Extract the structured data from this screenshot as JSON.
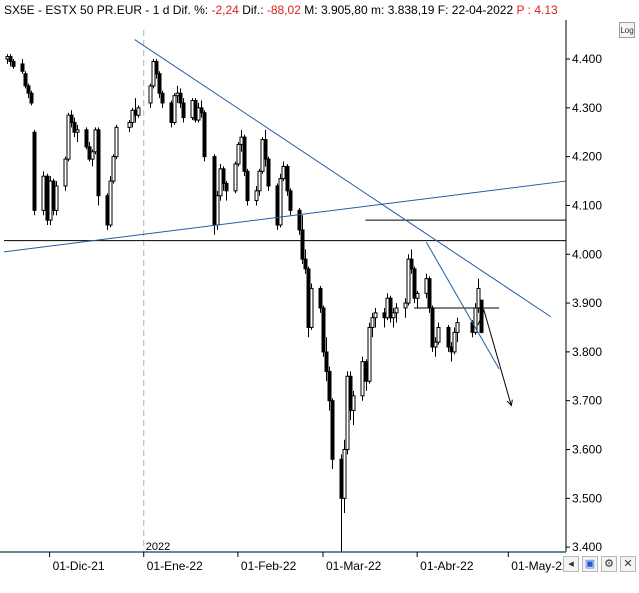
{
  "header": {
    "symbol": "SX5E",
    "name": "ESTX 50 PR.EUR",
    "period": "1 d",
    "dif_pct_label": "Dif. %:",
    "dif_pct": "-2,24",
    "dif_label": "Dif.:",
    "dif": "-88,02",
    "max_label": "M:",
    "max": "3.905,80",
    "min_label": "m:",
    "min": "3.838,19",
    "date_label": "F:",
    "date": "22-04-2022",
    "p_label": "P :",
    "p": "4.13"
  },
  "toolbar": {
    "log_label": "Log"
  },
  "colors": {
    "candle": "#000000",
    "trendline": "#1f5fa6",
    "support": "#000000",
    "bottom_line": "#3a9aa6",
    "negative": "#e02020"
  },
  "chart_data": {
    "type": "candlestick",
    "ylim": [
      3390,
      4480
    ],
    "yticks": [
      "4.400",
      "4.300",
      "4.200",
      "4.100",
      "4.000",
      "3.900",
      "3.800",
      "3.700",
      "3.600",
      "3.500",
      "3.400"
    ],
    "ytick_values": [
      4400,
      4300,
      4200,
      4100,
      4000,
      3900,
      3800,
      3700,
      3600,
      3500,
      3400
    ],
    "xticks": [
      "01-Dic-21",
      "01-Ene-22",
      "01-Feb-22",
      "01-Mar-22",
      "01-Abr-22",
      "01-May-22"
    ],
    "xticks_date": [
      "2021-12-01",
      "2022-01-01",
      "2022-02-01",
      "2022-03-01",
      "2022-04-01",
      "2022-05-01"
    ],
    "year_label": "2022",
    "year_date": "2022-01-01",
    "x_range": [
      "2021-11-16",
      "2022-05-20"
    ],
    "horizontal_lines": [
      {
        "level": 4028,
        "from": "2021-11-16",
        "to": "2022-05-20",
        "kind": "support"
      },
      {
        "level": 4070,
        "from": "2022-03-15",
        "to": "2022-05-20",
        "kind": "support"
      },
      {
        "level": 3890,
        "from": "2022-03-31",
        "to": "2022-04-28",
        "kind": "support"
      },
      {
        "level": 3391,
        "from": "2021-11-16",
        "to": "2022-05-20",
        "kind": "bottom"
      }
    ],
    "trendlines": [
      {
        "from": [
          "2021-11-16",
          4005
        ],
        "to": [
          "2022-05-20",
          4150
        ]
      },
      {
        "from": [
          "2021-12-29",
          4440
        ],
        "to": [
          "2022-05-15",
          3872
        ]
      },
      {
        "from": [
          "2022-04-04",
          4025
        ],
        "to": [
          "2022-04-28",
          3765
        ]
      }
    ],
    "projection_arrows": [
      {
        "points": [
          [
            "2022-04-21",
            3855
          ],
          [
            "2022-04-23",
            3885
          ],
          [
            "2022-05-02",
            3690
          ]
        ]
      }
    ],
    "candles": [
      [
        "2021-11-17",
        4400,
        4410,
        4390,
        4405
      ],
      [
        "2021-11-18",
        4405,
        4410,
        4385,
        4395
      ],
      [
        "2021-11-19",
        4395,
        4400,
        4380,
        4385
      ],
      [
        "2021-11-22",
        4390,
        4400,
        4370,
        4375
      ],
      [
        "2021-11-23",
        4370,
        4375,
        4340,
        4345
      ],
      [
        "2021-11-24",
        4345,
        4350,
        4320,
        4330
      ],
      [
        "2021-11-25",
        4330,
        4335,
        4305,
        4310
      ],
      [
        "2021-11-26",
        4250,
        4255,
        4080,
        4090
      ],
      [
        "2021-11-29",
        4090,
        4170,
        4080,
        4160
      ],
      [
        "2021-11-30",
        4160,
        4165,
        4060,
        4070
      ],
      [
        "2021-12-01",
        4070,
        4160,
        4060,
        4150
      ],
      [
        "2021-12-02",
        4150,
        4155,
        4080,
        4090
      ],
      [
        "2021-12-03",
        4090,
        4150,
        4080,
        4140
      ],
      [
        "2021-12-06",
        4140,
        4200,
        4130,
        4195
      ],
      [
        "2021-12-07",
        4195,
        4290,
        4190,
        4285
      ],
      [
        "2021-12-08",
        4285,
        4295,
        4260,
        4270
      ],
      [
        "2021-12-09",
        4270,
        4280,
        4240,
        4250
      ],
      [
        "2021-12-10",
        4250,
        4265,
        4230,
        4255
      ],
      [
        "2021-12-13",
        4255,
        4260,
        4215,
        4220
      ],
      [
        "2021-12-14",
        4220,
        4230,
        4190,
        4195
      ],
      [
        "2021-12-15",
        4195,
        4215,
        4180,
        4210
      ],
      [
        "2021-12-16",
        4210,
        4260,
        4205,
        4255
      ],
      [
        "2021-12-17",
        4255,
        4260,
        4100,
        4120
      ],
      [
        "2021-12-20",
        4120,
        4125,
        4050,
        4060
      ],
      [
        "2021-12-21",
        4060,
        4160,
        4055,
        4150
      ],
      [
        "2021-12-22",
        4150,
        4205,
        4145,
        4200
      ],
      [
        "2021-12-23",
        4200,
        4265,
        4195,
        4260
      ],
      [
        "2021-12-27",
        4260,
        4275,
        4250,
        4270
      ],
      [
        "2021-12-28",
        4270,
        4300,
        4260,
        4295
      ],
      [
        "2021-12-29",
        4295,
        4320,
        4270,
        4285
      ],
      [
        "2021-12-30",
        4285,
        4305,
        4280,
        4300
      ],
      [
        "2022-01-03",
        4310,
        4350,
        4300,
        4345
      ],
      [
        "2022-01-04",
        4345,
        4400,
        4340,
        4395
      ],
      [
        "2022-01-05",
        4395,
        4400,
        4360,
        4370
      ],
      [
        "2022-01-06",
        4370,
        4375,
        4320,
        4330
      ],
      [
        "2022-01-07",
        4330,
        4335,
        4300,
        4310
      ],
      [
        "2022-01-10",
        4310,
        4315,
        4260,
        4270
      ],
      [
        "2022-01-11",
        4270,
        4330,
        4265,
        4325
      ],
      [
        "2022-01-12",
        4325,
        4345,
        4310,
        4330
      ],
      [
        "2022-01-13",
        4330,
        4340,
        4300,
        4310
      ],
      [
        "2022-01-14",
        4310,
        4320,
        4270,
        4280
      ],
      [
        "2022-01-17",
        4280,
        4320,
        4275,
        4315
      ],
      [
        "2022-01-18",
        4315,
        4320,
        4270,
        4275
      ],
      [
        "2022-01-19",
        4275,
        4310,
        4270,
        4300
      ],
      [
        "2022-01-20",
        4300,
        4315,
        4280,
        4290
      ],
      [
        "2022-01-21",
        4290,
        4295,
        4190,
        4200
      ],
      [
        "2022-01-24",
        4200,
        4205,
        4040,
        4060
      ],
      [
        "2022-01-25",
        4060,
        4130,
        4050,
        4120
      ],
      [
        "2022-01-26",
        4120,
        4185,
        4110,
        4175
      ],
      [
        "2022-01-27",
        4175,
        4180,
        4130,
        4145
      ],
      [
        "2022-01-28",
        4145,
        4150,
        4110,
        4130
      ],
      [
        "2022-01-31",
        4130,
        4190,
        4125,
        4185
      ],
      [
        "2022-02-01",
        4185,
        4230,
        4180,
        4225
      ],
      [
        "2022-02-02",
        4225,
        4255,
        4210,
        4240
      ],
      [
        "2022-02-03",
        4240,
        4245,
        4160,
        4170
      ],
      [
        "2022-02-04",
        4170,
        4175,
        4100,
        4110
      ],
      [
        "2022-02-07",
        4110,
        4140,
        4100,
        4130
      ],
      [
        "2022-02-08",
        4130,
        4175,
        4120,
        4170
      ],
      [
        "2022-02-09",
        4170,
        4240,
        4165,
        4235
      ],
      [
        "2022-02-10",
        4235,
        4255,
        4180,
        4195
      ],
      [
        "2022-02-11",
        4195,
        4200,
        4130,
        4140
      ],
      [
        "2022-02-14",
        4140,
        4145,
        4050,
        4060
      ],
      [
        "2022-02-15",
        4060,
        4165,
        4055,
        4155
      ],
      [
        "2022-02-16",
        4155,
        4190,
        4150,
        4180
      ],
      [
        "2022-02-17",
        4180,
        4185,
        4120,
        4130
      ],
      [
        "2022-02-18",
        4130,
        4135,
        4080,
        4090
      ],
      [
        "2022-02-21",
        4090,
        4095,
        4040,
        4050
      ],
      [
        "2022-02-22",
        4050,
        4080,
        3980,
        3990
      ],
      [
        "2022-02-23",
        3990,
        4010,
        3960,
        3970
      ],
      [
        "2022-02-24",
        3970,
        3975,
        3830,
        3850
      ],
      [
        "2022-02-25",
        3850,
        3940,
        3845,
        3930
      ],
      [
        "2022-02-28",
        3930,
        3935,
        3880,
        3890
      ],
      [
        "2022-03-01",
        3890,
        3895,
        3790,
        3800
      ],
      [
        "2022-03-02",
        3800,
        3830,
        3740,
        3760
      ],
      [
        "2022-03-03",
        3760,
        3770,
        3680,
        3700
      ],
      [
        "2022-03-04",
        3700,
        3705,
        3560,
        3580
      ],
      [
        "2022-03-07",
        3580,
        3590,
        3390,
        3500
      ],
      [
        "2022-03-08",
        3500,
        3620,
        3470,
        3600
      ],
      [
        "2022-03-09",
        3600,
        3760,
        3590,
        3750
      ],
      [
        "2022-03-10",
        3750,
        3760,
        3660,
        3680
      ],
      [
        "2022-03-11",
        3680,
        3720,
        3650,
        3710
      ],
      [
        "2022-03-14",
        3710,
        3790,
        3700,
        3780
      ],
      [
        "2022-03-15",
        3780,
        3785,
        3720,
        3740
      ],
      [
        "2022-03-16",
        3740,
        3860,
        3735,
        3850
      ],
      [
        "2022-03-17",
        3850,
        3880,
        3830,
        3870
      ],
      [
        "2022-03-18",
        3870,
        3890,
        3850,
        3880
      ],
      [
        "2022-03-21",
        3880,
        3890,
        3850,
        3870
      ],
      [
        "2022-03-22",
        3870,
        3920,
        3865,
        3910
      ],
      [
        "2022-03-23",
        3910,
        3915,
        3860,
        3870
      ],
      [
        "2022-03-24",
        3870,
        3890,
        3850,
        3880
      ],
      [
        "2022-03-25",
        3880,
        3900,
        3860,
        3890
      ],
      [
        "2022-03-28",
        3890,
        3910,
        3870,
        3900
      ],
      [
        "2022-03-29",
        3900,
        4000,
        3895,
        3990
      ],
      [
        "2022-03-30",
        3990,
        4010,
        3960,
        3970
      ],
      [
        "2022-03-31",
        3970,
        3975,
        3900,
        3910
      ],
      [
        "2022-04-01",
        3910,
        3925,
        3890,
        3920
      ],
      [
        "2022-04-04",
        3920,
        3960,
        3910,
        3950
      ],
      [
        "2022-04-05",
        3950,
        3955,
        3880,
        3890
      ],
      [
        "2022-04-06",
        3890,
        3895,
        3800,
        3810
      ],
      [
        "2022-04-07",
        3810,
        3830,
        3790,
        3820
      ],
      [
        "2022-04-08",
        3820,
        3860,
        3815,
        3850
      ],
      [
        "2022-04-11",
        3850,
        3855,
        3800,
        3810
      ],
      [
        "2022-04-12",
        3810,
        3820,
        3780,
        3800
      ],
      [
        "2022-04-13",
        3800,
        3850,
        3795,
        3840
      ],
      [
        "2022-04-14",
        3840,
        3870,
        3820,
        3860
      ],
      [
        "2022-04-19",
        3860,
        3865,
        3830,
        3840
      ],
      [
        "2022-04-20",
        3840,
        3900,
        3835,
        3890
      ],
      [
        "2022-04-21",
        3890,
        3950,
        3880,
        3930
      ],
      [
        "2022-04-22",
        3906,
        3906,
        3838,
        3840
      ]
    ]
  }
}
